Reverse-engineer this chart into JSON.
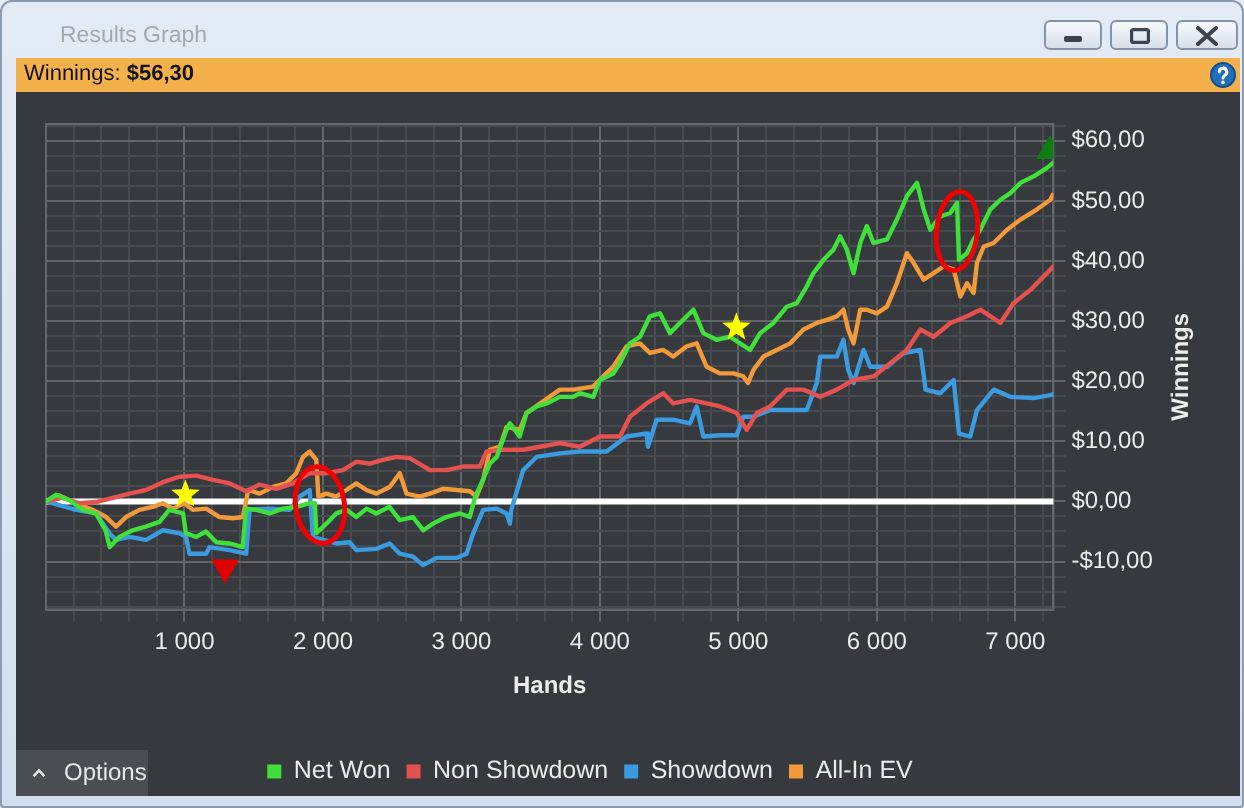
{
  "chart_data": {
    "type": "line",
    "title": "Results Graph",
    "subtitle": "Winnings: $56,30",
    "xlabel": "Hands",
    "ylabel": "Winnings",
    "annotations": [
      "Options"
    ],
    "xlim": [
      0,
      7275
    ],
    "ylim": [
      -18,
      62.8
    ],
    "xticks": [
      {
        "value": 200,
        "label": null
      },
      {
        "value": 400,
        "label": null
      },
      {
        "value": 600,
        "label": null
      },
      {
        "value": 800,
        "label": null
      },
      {
        "value": 1000,
        "label": "1 000"
      },
      {
        "value": 1200,
        "label": null
      },
      {
        "value": 1400,
        "label": null
      },
      {
        "value": 1600,
        "label": null
      },
      {
        "value": 1800,
        "label": null
      },
      {
        "value": 2000,
        "label": "2 000"
      },
      {
        "value": 2200,
        "label": null
      },
      {
        "value": 2400,
        "label": null
      },
      {
        "value": 2600,
        "label": null
      },
      {
        "value": 2800,
        "label": null
      },
      {
        "value": 3000,
        "label": "3 000"
      },
      {
        "value": 3200,
        "label": null
      },
      {
        "value": 3400,
        "label": null
      },
      {
        "value": 3600,
        "label": null
      },
      {
        "value": 3800,
        "label": null
      },
      {
        "value": 4000,
        "label": "4 000"
      },
      {
        "value": 4200,
        "label": null
      },
      {
        "value": 4400,
        "label": null
      },
      {
        "value": 4600,
        "label": null
      },
      {
        "value": 4800,
        "label": null
      },
      {
        "value": 5000,
        "label": "5 000"
      },
      {
        "value": 5200,
        "label": null
      },
      {
        "value": 5400,
        "label": null
      },
      {
        "value": 5600,
        "label": null
      },
      {
        "value": 5800,
        "label": null
      },
      {
        "value": 6000,
        "label": "6 000"
      },
      {
        "value": 6200,
        "label": null
      },
      {
        "value": 6400,
        "label": null
      },
      {
        "value": 6600,
        "label": null
      },
      {
        "value": 6800,
        "label": null
      },
      {
        "value": 7000,
        "label": "7 000"
      },
      {
        "value": 7200,
        "label": null
      }
    ],
    "yticks": [
      {
        "value": -17.5,
        "label": null
      },
      {
        "value": -15,
        "label": null
      },
      {
        "value": -12.5,
        "label": null
      },
      {
        "value": -10,
        "label": "-$10,00"
      },
      {
        "value": -7.5,
        "label": null
      },
      {
        "value": -5,
        "label": null
      },
      {
        "value": -2.5,
        "label": null
      },
      {
        "value": 0,
        "label": "$0,00"
      },
      {
        "value": 2.5,
        "label": null
      },
      {
        "value": 5,
        "label": null
      },
      {
        "value": 7.5,
        "label": null
      },
      {
        "value": 10,
        "label": "$10,00"
      },
      {
        "value": 12.5,
        "label": null
      },
      {
        "value": 15,
        "label": null
      },
      {
        "value": 17.5,
        "label": null
      },
      {
        "value": 20,
        "label": "$20,00"
      },
      {
        "value": 22.5,
        "label": null
      },
      {
        "value": 25,
        "label": null
      },
      {
        "value": 27.5,
        "label": null
      },
      {
        "value": 30,
        "label": "$30,00"
      },
      {
        "value": 32.5,
        "label": null
      },
      {
        "value": 35,
        "label": null
      },
      {
        "value": 37.5,
        "label": null
      },
      {
        "value": 40,
        "label": "$40,00"
      },
      {
        "value": 42.5,
        "label": null
      },
      {
        "value": 45,
        "label": null
      },
      {
        "value": 47.5,
        "label": null
      },
      {
        "value": 50,
        "label": "$50,00"
      },
      {
        "value": 52.5,
        "label": null
      },
      {
        "value": 55,
        "label": null
      },
      {
        "value": 57.5,
        "label": null
      },
      {
        "value": 60,
        "label": "$60,00"
      },
      {
        "value": 62.5,
        "label": null
      }
    ],
    "grid": true,
    "legend": "bottom",
    "ref_lines": [
      {
        "axis": "y",
        "value": 0,
        "color": "#ffffff"
      }
    ],
    "series": [
      {
        "name": "Net Won",
        "color": "#3fe03a",
        "x": [
          0,
          72,
          170,
          265,
          360,
          430,
          460,
          530,
          625,
          720,
          820,
          890,
          990,
          1010,
          1085,
          1155,
          1230,
          1325,
          1420,
          1445,
          1520,
          1615,
          1710,
          1810,
          1905,
          1942,
          1952,
          2025,
          2095,
          2170,
          2240,
          2315,
          2385,
          2480,
          2555,
          2650,
          2725,
          2795,
          2890,
          2990,
          3060,
          3100,
          3155,
          3205,
          3255,
          3325,
          3350,
          3420,
          3470,
          3545,
          3615,
          3711,
          3807,
          3855,
          3952,
          4000,
          4096,
          4145,
          4217,
          4290,
          4361,
          4434,
          4506,
          4578,
          4675,
          4747,
          4843,
          4940,
          5012,
          5085,
          5157,
          5253,
          5350,
          5422,
          5494,
          5542,
          5615,
          5687,
          5735,
          5783,
          5832,
          5880,
          5928,
          5976,
          6073,
          6145,
          6217,
          6290,
          6338,
          6386,
          6458,
          6530,
          6579,
          6593,
          6651,
          6699,
          6747,
          6820,
          6892,
          6964,
          7037,
          7133,
          7229,
          7270
        ],
        "values": [
          0,
          1.1,
          0.2,
          -1.4,
          -2,
          -4.8,
          -7.6,
          -5.9,
          -4.8,
          -4.2,
          -3.4,
          -1.4,
          -2,
          -5.3,
          -5.9,
          -5,
          -6.8,
          -7,
          -7.6,
          -1.2,
          -1.4,
          -2,
          -1.2,
          -0.9,
          -0.3,
          -0.3,
          -5.3,
          -3.7,
          -2,
          -1.4,
          -2.6,
          -1.2,
          -2,
          -0.9,
          -3.1,
          -2.6,
          -4.8,
          -3.7,
          -2.6,
          -2,
          -2.6,
          0.8,
          3.6,
          6.3,
          7.4,
          11.9,
          13,
          10.8,
          14.7,
          15.8,
          16.3,
          17.4,
          17.4,
          18,
          17.4,
          20.2,
          21.3,
          23,
          26.3,
          27.4,
          30.8,
          31.3,
          28,
          29.7,
          31.9,
          28,
          26.9,
          27.4,
          26.3,
          25.2,
          28,
          29.7,
          32.4,
          33,
          35.8,
          38,
          40.2,
          41.9,
          44.1,
          41.9,
          38,
          43,
          45.8,
          43,
          43.6,
          46.9,
          50.8,
          53,
          48.6,
          45.2,
          47.4,
          48,
          49.7,
          40.2,
          41.3,
          43.6,
          45.2,
          48.6,
          50.2,
          51.3,
          53,
          54.1,
          55.5,
          56.3
        ]
      },
      {
        "name": "Non Showdown",
        "color": "#e4514e",
        "x": [
          0,
          120,
          241,
          362,
          482,
          603,
          723,
          844,
          964,
          1085,
          1205,
          1326,
          1446,
          1542,
          1663,
          1783,
          1904,
          2024,
          2145,
          2241,
          2338,
          2434,
          2531,
          2627,
          2772,
          2892,
          3012,
          3133,
          3181,
          3302,
          3446,
          3567,
          3711,
          3855,
          4000,
          4145,
          4217,
          4337,
          4458,
          4530,
          4651,
          4771,
          4868,
          4988,
          5060,
          5133,
          5229,
          5350,
          5470,
          5591,
          5711,
          5832,
          5976,
          6097,
          6217,
          6314,
          6410,
          6531,
          6651,
          6747,
          6892,
          6988,
          7109,
          7254,
          7270
        ],
        "values": [
          0,
          0.6,
          -0.3,
          -0.1,
          0.6,
          1.3,
          1.9,
          3.2,
          4.1,
          4.3,
          3.6,
          3,
          1.7,
          2.8,
          2.1,
          3,
          4.7,
          4.7,
          5.2,
          6.6,
          6.3,
          6.9,
          7.4,
          7.2,
          5.2,
          5.2,
          5.8,
          5.8,
          8.3,
          8.6,
          8.6,
          9.1,
          9.7,
          9.1,
          10.8,
          10.8,
          14.1,
          16.3,
          18,
          16.3,
          16.9,
          16.3,
          15.8,
          14.7,
          11.9,
          14.7,
          15.8,
          18.6,
          18.6,
          17.4,
          18.6,
          20.2,
          20.8,
          23,
          25.2,
          28.6,
          27.4,
          29.7,
          30.8,
          31.9,
          29.7,
          33,
          35.2,
          38.6,
          39
        ]
      },
      {
        "name": "Showdown",
        "color": "#3b9be0",
        "x": [
          0,
          96,
          217,
          362,
          458,
          506,
          603,
          723,
          844,
          964,
          1012,
          1036,
          1157,
          1181,
          1326,
          1446,
          1470,
          1615,
          1759,
          1832,
          1904,
          1928,
          2000,
          2097,
          2193,
          2241,
          2386,
          2482,
          2555,
          2651,
          2723,
          2820,
          2964,
          3037,
          3085,
          3157,
          3254,
          3326,
          3350,
          3360,
          3446,
          3543,
          3711,
          3855,
          4048,
          4193,
          4337,
          4347,
          4410,
          4530,
          4651,
          4699,
          4747,
          4868,
          4988,
          5036,
          5109,
          5229,
          5350,
          5494,
          5567,
          5591,
          5711,
          5759,
          5793,
          5832,
          5904,
          5952,
          6073,
          6193,
          6314,
          6352,
          6458,
          6555,
          6593,
          6675,
          6723,
          6844,
          6964,
          7133,
          7253,
          7270
        ],
        "values": [
          0,
          -0.6,
          -1.4,
          -2,
          -5.3,
          -6.4,
          -5.9,
          -6.4,
          -4.8,
          -5.3,
          -5.9,
          -8.7,
          -8.7,
          -7.6,
          -8.1,
          -8.7,
          -1.4,
          -1.2,
          -1.4,
          0.8,
          1.9,
          -5.9,
          -6.4,
          -7,
          -6.8,
          -8.1,
          -7.9,
          -7,
          -8.7,
          -9.2,
          -10.6,
          -9.4,
          -9.4,
          -8.7,
          -5.3,
          -1.4,
          -1.2,
          -2,
          -3.7,
          -1.4,
          5.2,
          7.4,
          8,
          8.3,
          8.3,
          10.8,
          11.3,
          9.1,
          13.6,
          13.6,
          13,
          15.8,
          10.8,
          11,
          11,
          14.1,
          14.1,
          15.2,
          15.2,
          15.2,
          19.7,
          24.1,
          24.1,
          26.9,
          21.9,
          19.7,
          25.2,
          22.4,
          22.4,
          24.7,
          25.2,
          18.6,
          18,
          20.2,
          11.3,
          10.8,
          15.2,
          18.6,
          17.4,
          17.2,
          17.7,
          17.8
        ]
      },
      {
        "name": "All-In EV",
        "color": "#f29a3a",
        "x": [
          0,
          96,
          217,
          337,
          434,
          506,
          578,
          675,
          771,
          843,
          916,
          998,
          1060,
          1157,
          1253,
          1350,
          1422,
          1460,
          1542,
          1639,
          1735,
          1808,
          1856,
          1904,
          1952,
          1967,
          2024,
          2097,
          2169,
          2241,
          2314,
          2386,
          2482,
          2555,
          2603,
          2699,
          2772,
          2868,
          2964,
          3061,
          3109,
          3157,
          3205,
          3278,
          3326,
          3422,
          3470,
          3567,
          3711,
          3807,
          3952,
          4024,
          4096,
          4193,
          4289,
          4361,
          4458,
          4530,
          4627,
          4699,
          4771,
          4868,
          4964,
          5036,
          5070,
          5109,
          5181,
          5277,
          5374,
          5470,
          5567,
          5639,
          5711,
          5759,
          5793,
          5832,
          5880,
          5928,
          6000,
          6073,
          6145,
          6217,
          6265,
          6338,
          6410,
          6482,
          6555,
          6603,
          6651,
          6699,
          6723,
          6772,
          6844,
          6940,
          7037,
          7157,
          7253,
          7270
        ],
        "values": [
          0,
          1,
          -0.3,
          -1.4,
          -2.6,
          -4.2,
          -2.6,
          -1.4,
          -0.9,
          -0.3,
          -1.2,
          -0.3,
          -1.4,
          -1.2,
          -2.6,
          -2.8,
          -2.6,
          1.9,
          1.3,
          2.4,
          3,
          4.7,
          7.4,
          8.3,
          6.9,
          0.8,
          1.3,
          0.8,
          1.9,
          3,
          1.9,
          1.3,
          2.4,
          4.7,
          1.3,
          0.8,
          1.3,
          2.1,
          1.9,
          1.7,
          0.8,
          3.6,
          8.6,
          9.1,
          12.4,
          11.9,
          14.7,
          16.3,
          18.6,
          18.6,
          19.1,
          20.8,
          22.4,
          25.8,
          26.3,
          24.7,
          25.2,
          24.1,
          25.8,
          26.3,
          22.4,
          21.3,
          21.3,
          20.8,
          19.7,
          21.9,
          24.1,
          25.2,
          26.3,
          28.6,
          29.7,
          30.2,
          30.8,
          31.9,
          28.6,
          26.3,
          31.9,
          31.9,
          31.3,
          32.4,
          36.3,
          41.3,
          39.7,
          36.9,
          38,
          39.1,
          38.6,
          34.1,
          36.3,
          34.7,
          39.7,
          42.4,
          43,
          45.2,
          46.9,
          48.6,
          50.2,
          51
        ]
      },
      {
        "type": "scatter",
        "marker": "star",
        "color": "#ffff00",
        "x": [
          1007,
          4986
        ],
        "values": [
          1.4,
          29.2
        ]
      },
      {
        "type": "scatter",
        "marker": "triangle",
        "color": "#e00000",
        "x": [
          1294
        ],
        "values": [
          -11
        ]
      },
      {
        "type": "scatter",
        "marker": "triangle",
        "color": "#0f7d0f",
        "x": [
          7250
        ],
        "values": [
          58.3
        ]
      }
    ]
  }
}
